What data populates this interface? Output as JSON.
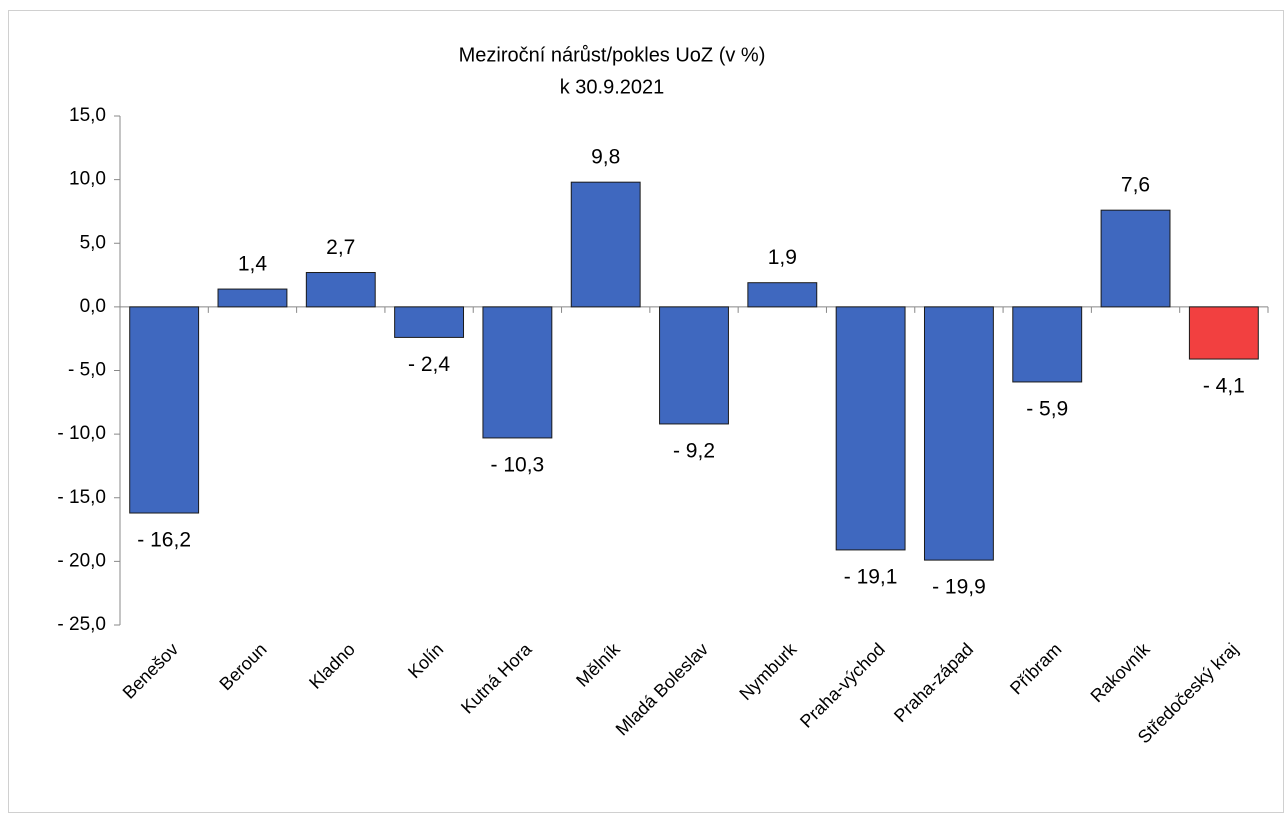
{
  "chart_data": {
    "type": "bar",
    "title": "Meziroční nárůst/pokles UoZ (v %)",
    "subtitle": "k 30.9.2021",
    "categories": [
      "Benešov",
      "Beroun",
      "Kladno",
      "Kolín",
      "Kutná Hora",
      "Mělník",
      "Mladá Boleslav",
      "Nymburk",
      "Praha-východ",
      "Praha-západ",
      "Příbram",
      "Rakovník",
      "Středočeský kraj"
    ],
    "values": [
      -16.2,
      1.4,
      2.7,
      -2.4,
      -10.3,
      9.8,
      -9.2,
      1.9,
      -19.1,
      -19.9,
      -5.9,
      7.6,
      -4.1
    ],
    "value_labels": [
      "- 16,2",
      "1,4",
      "2,7",
      "- 2,4",
      "- 10,3",
      "9,8",
      "- 9,2",
      "1,9",
      "- 19,1",
      "- 19,9",
      "- 5,9",
      "7,6",
      "- 4,1"
    ],
    "colors": [
      "#3f68bf",
      "#3f68bf",
      "#3f68bf",
      "#3f68bf",
      "#3f68bf",
      "#3f68bf",
      "#3f68bf",
      "#3f68bf",
      "#3f68bf",
      "#3f68bf",
      "#3f68bf",
      "#3f68bf",
      "#f24040"
    ],
    "ylim": [
      -25,
      15
    ],
    "yticks": [
      {
        "value": -25,
        "label": "- 25,0"
      },
      {
        "value": -20,
        "label": "- 20,0"
      },
      {
        "value": -15,
        "label": "- 15,0"
      },
      {
        "value": -10,
        "label": "- 10,0"
      },
      {
        "value": -5,
        "label": "- 5,0"
      },
      {
        "value": 0,
        "label": "0,0"
      },
      {
        "value": 5,
        "label": "5,0"
      },
      {
        "value": 10,
        "label": "10,0"
      },
      {
        "value": 15,
        "label": "15,0"
      }
    ],
    "grid": false
  }
}
